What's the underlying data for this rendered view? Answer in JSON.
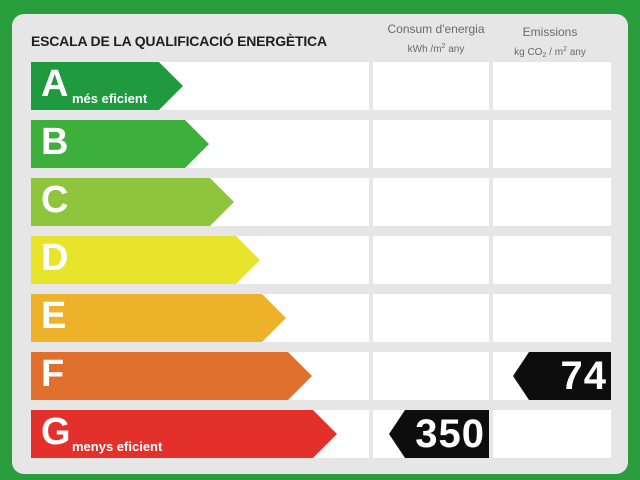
{
  "header": {
    "title": "ESCALA DE LA QUALIFICACIÓ ENERGÈTICA",
    "consum": {
      "title": "Consum d'energia",
      "unit_pre": "kWh /m",
      "unit_sup": "2",
      "unit_post": " any"
    },
    "emissions": {
      "title": "Emissions",
      "unit_pre": "kg CO",
      "unit_sub": "2",
      "unit_mid": " / m",
      "unit_sup": "2",
      "unit_post": " any"
    }
  },
  "ratings": [
    {
      "letter": "A",
      "label": "més eficient",
      "color": "#1f9a3e"
    },
    {
      "letter": "B",
      "label": "",
      "color": "#3daf3b"
    },
    {
      "letter": "C",
      "label": "",
      "color": "#8fc53d"
    },
    {
      "letter": "D",
      "label": "",
      "color": "#e8e42c"
    },
    {
      "letter": "E",
      "label": "",
      "color": "#eeb22a"
    },
    {
      "letter": "F",
      "label": "",
      "color": "#e06f2d"
    },
    {
      "letter": "G",
      "label": "menys eficient",
      "color": "#e3302b"
    }
  ],
  "result": {
    "consum": {
      "value": "350",
      "rating": "G"
    },
    "emissions": {
      "value": "74",
      "rating": "F"
    }
  }
}
